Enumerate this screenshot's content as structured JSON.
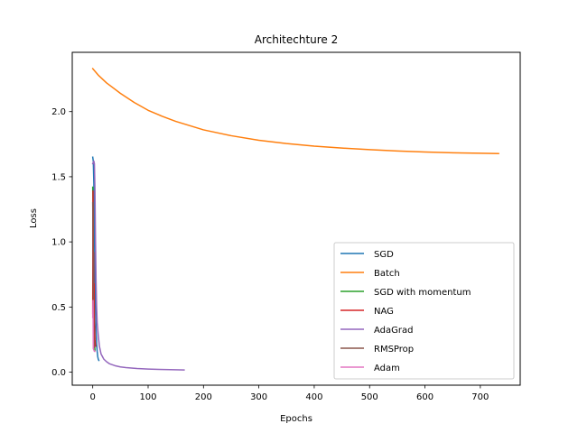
{
  "chart_data": {
    "type": "line",
    "title": "Architechture 2",
    "xlabel": "Epochs",
    "ylabel": "Loss",
    "xlim": [
      -37,
      772
    ],
    "ylim": [
      -0.1,
      2.455
    ],
    "xticks": [
      0,
      100,
      200,
      300,
      400,
      500,
      600,
      700
    ],
    "yticks": [
      0.0,
      0.5,
      1.0,
      1.5,
      2.0
    ],
    "ytick_labels": [
      "0.0",
      "0.5",
      "1.0",
      "1.5",
      "2.0"
    ],
    "grid": false,
    "legend_position": "lower-right",
    "series": [
      {
        "name": "SGD",
        "color": "#1f77b4",
        "points": [
          [
            0,
            1.65
          ],
          [
            1,
            1.62
          ],
          [
            2,
            1.45
          ],
          [
            3,
            1.1
          ],
          [
            4,
            0.75
          ],
          [
            5,
            0.5
          ],
          [
            6,
            0.32
          ],
          [
            7,
            0.22
          ],
          [
            8,
            0.16
          ],
          [
            9,
            0.12
          ],
          [
            10,
            0.1
          ],
          [
            11,
            0.09
          ]
        ]
      },
      {
        "name": "Batch",
        "color": "#ff7f0e",
        "points": [
          [
            0,
            2.33
          ],
          [
            10,
            2.28
          ],
          [
            25,
            2.22
          ],
          [
            50,
            2.14
          ],
          [
            75,
            2.07
          ],
          [
            100,
            2.01
          ],
          [
            125,
            1.965
          ],
          [
            150,
            1.925
          ],
          [
            200,
            1.86
          ],
          [
            250,
            1.815
          ],
          [
            300,
            1.78
          ],
          [
            350,
            1.755
          ],
          [
            400,
            1.735
          ],
          [
            450,
            1.72
          ],
          [
            500,
            1.708
          ],
          [
            550,
            1.698
          ],
          [
            600,
            1.69
          ],
          [
            650,
            1.684
          ],
          [
            700,
            1.68
          ],
          [
            733,
            1.678
          ]
        ]
      },
      {
        "name": "SGD with momentum",
        "color": "#2ca02c",
        "points": [
          [
            0,
            1.42
          ],
          [
            0.5,
            1.25
          ],
          [
            1,
            0.9
          ],
          [
            1.5,
            0.6
          ],
          [
            2,
            0.4
          ],
          [
            2.5,
            0.3
          ],
          [
            3,
            0.22
          ],
          [
            4,
            0.17
          ]
        ]
      },
      {
        "name": "NAG",
        "color": "#d62728",
        "points": [
          [
            0,
            0.45
          ],
          [
            0.5,
            1.39
          ],
          [
            1,
            0.7
          ],
          [
            1.5,
            0.92
          ],
          [
            2,
            0.5
          ],
          [
            2.5,
            0.68
          ],
          [
            3,
            0.4
          ],
          [
            4,
            0.25
          ],
          [
            5,
            0.2
          ]
        ]
      },
      {
        "name": "AdaGrad",
        "color": "#9467bd",
        "points": [
          [
            0,
            1.6
          ],
          [
            2,
            1.62
          ],
          [
            3,
            1.6
          ],
          [
            4,
            1.4
          ],
          [
            5,
            1.0
          ],
          [
            6,
            0.7
          ],
          [
            7,
            0.5
          ],
          [
            8,
            0.38
          ],
          [
            10,
            0.28
          ],
          [
            12,
            0.2
          ],
          [
            15,
            0.14
          ],
          [
            20,
            0.1
          ],
          [
            25,
            0.08
          ],
          [
            30,
            0.065
          ],
          [
            40,
            0.05
          ],
          [
            50,
            0.04
          ],
          [
            60,
            0.035
          ],
          [
            80,
            0.028
          ],
          [
            100,
            0.024
          ],
          [
            120,
            0.021
          ],
          [
            140,
            0.019
          ],
          [
            165,
            0.017
          ]
        ]
      },
      {
        "name": "RMSProp",
        "color": "#8c564b",
        "points": [
          [
            0,
            1.3
          ],
          [
            0.5,
            1.0
          ],
          [
            1,
            0.6
          ],
          [
            1.5,
            0.35
          ],
          [
            2,
            0.25
          ],
          [
            3,
            0.19
          ]
        ]
      },
      {
        "name": "Adam",
        "color": "#e377c2",
        "points": [
          [
            0,
            0.42
          ],
          [
            0.5,
            0.55
          ],
          [
            1,
            0.18
          ],
          [
            2,
            0.17
          ],
          [
            3,
            0.16
          ],
          [
            4,
            0.16
          ]
        ]
      }
    ]
  }
}
